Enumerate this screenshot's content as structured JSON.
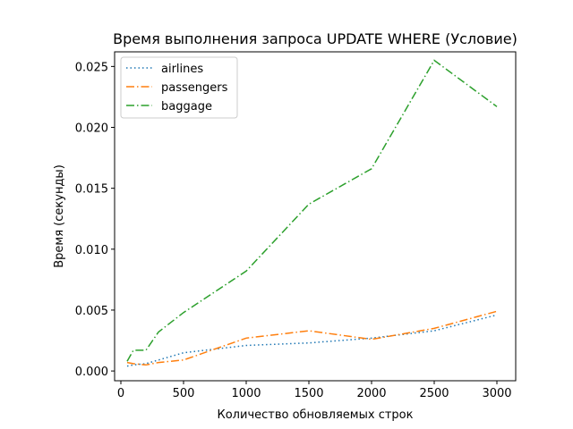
{
  "chart_data": {
    "type": "line",
    "title": "Время выполнения запроса UPDATE WHERE (Условие)",
    "xlabel": "Количество обновляемых строк",
    "ylabel": "Время (секунды)",
    "xlim": [
      -50,
      3150
    ],
    "ylim": [
      -0.0008,
      0.0262
    ],
    "x_ticks": [
      0,
      500,
      1000,
      1500,
      2000,
      2500,
      3000
    ],
    "x_tick_labels": [
      "0",
      "500",
      "1000",
      "1500",
      "2000",
      "2500",
      "3000"
    ],
    "y_ticks": [
      0,
      0.005,
      0.01,
      0.015,
      0.02,
      0.025
    ],
    "y_tick_labels": [
      "0.000",
      "0.005",
      "0.010",
      "0.015",
      "0.020",
      "0.025"
    ],
    "grid": false,
    "legend_position": "top-left",
    "x": [
      50,
      100,
      200,
      300,
      500,
      1000,
      1500,
      2000,
      2500,
      3000
    ],
    "series": [
      {
        "name": "airlines",
        "color": "#1f77b4",
        "dash": "dotted",
        "values": [
          0.0004,
          0.0005,
          0.0006,
          0.0009,
          0.0015,
          0.0021,
          0.0023,
          0.0027,
          0.0033,
          0.0046
        ]
      },
      {
        "name": "passengers",
        "color": "#ff7f0e",
        "dash": "dashdot",
        "values": [
          0.0007,
          0.0006,
          0.0005,
          0.0007,
          0.0009,
          0.0027,
          0.0033,
          0.0026,
          0.0035,
          0.0049
        ]
      },
      {
        "name": "baggage",
        "color": "#2ca02c",
        "dash": "dashdot",
        "values": [
          0.0008,
          0.0017,
          0.0017,
          0.0032,
          0.0048,
          0.0082,
          0.0137,
          0.0166,
          0.0255,
          0.0217
        ]
      }
    ]
  }
}
